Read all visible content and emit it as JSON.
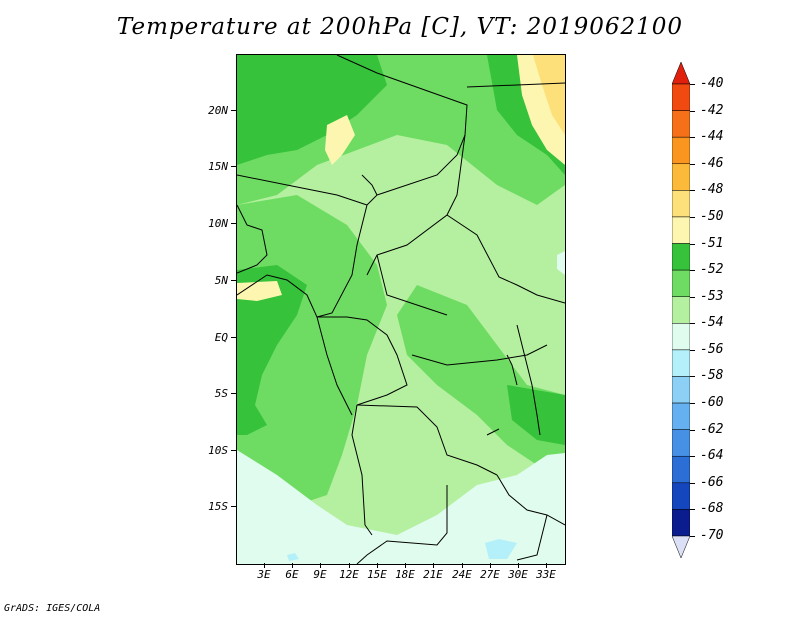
{
  "title": "Temperature at 200hPa [C], VT: 2019062100",
  "credit": "GrADS: IGES/COLA",
  "map": {
    "lat_labels": [
      "20N",
      "15N",
      "10N",
      "5N",
      "EQ",
      "5S",
      "10S",
      "15S"
    ],
    "lon_labels": [
      "3E",
      "6E",
      "9E",
      "12E",
      "15E",
      "18E",
      "21E",
      "24E",
      "27E",
      "30E",
      "33E"
    ]
  },
  "colorbar": {
    "labels": [
      "-40",
      "-42",
      "-44",
      "-46",
      "-48",
      "-50",
      "-51",
      "-52",
      "-53",
      "-54",
      "-56",
      "-58",
      "-60",
      "-62",
      "-64",
      "-66",
      "-68",
      "-70"
    ],
    "colors": [
      "#e0200c",
      "#f04a10",
      "#f6701a",
      "#fa9620",
      "#fbba3a",
      "#fde07a",
      "#fdf6b0",
      "#36c23a",
      "#6edc62",
      "#b4f0a0",
      "#e0fcee",
      "#b4f0fa",
      "#8cd0f6",
      "#64b0f0",
      "#4690e6",
      "#2a6ed6",
      "#1446be",
      "#0a1c8e",
      "#dce0f6"
    ]
  }
}
